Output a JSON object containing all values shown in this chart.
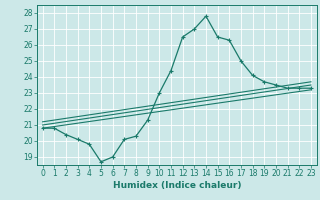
{
  "title": "",
  "xlabel": "Humidex (Indice chaleur)",
  "ylabel": "",
  "bg_color": "#cce8e8",
  "grid_color": "#ffffff",
  "line_color": "#1a7a6a",
  "xlim": [
    -0.5,
    23.5
  ],
  "ylim": [
    18.5,
    28.5
  ],
  "xticks": [
    0,
    1,
    2,
    3,
    4,
    5,
    6,
    7,
    8,
    9,
    10,
    11,
    12,
    13,
    14,
    15,
    16,
    17,
    18,
    19,
    20,
    21,
    22,
    23
  ],
  "yticks": [
    19,
    20,
    21,
    22,
    23,
    24,
    25,
    26,
    27,
    28
  ],
  "humidex_curve": {
    "x": [
      0,
      1,
      2,
      3,
      4,
      5,
      6,
      7,
      8,
      9,
      10,
      11,
      12,
      13,
      14,
      15,
      16,
      17,
      18,
      19,
      20,
      21,
      22,
      23
    ],
    "y": [
      20.8,
      20.8,
      20.4,
      20.1,
      19.8,
      18.7,
      19.0,
      20.1,
      20.3,
      21.3,
      23.0,
      24.4,
      26.5,
      27.0,
      27.8,
      26.5,
      26.3,
      25.0,
      24.1,
      23.7,
      23.5,
      23.3,
      23.3,
      23.3
    ]
  },
  "line1": {
    "x": [
      0,
      23
    ],
    "y": [
      20.8,
      23.2
    ]
  },
  "line2": {
    "x": [
      0,
      23
    ],
    "y": [
      21.0,
      23.5
    ]
  },
  "line3": {
    "x": [
      0,
      23
    ],
    "y": [
      21.2,
      23.7
    ]
  },
  "xlabel_fontsize": 6.5,
  "tick_fontsize": 5.5
}
